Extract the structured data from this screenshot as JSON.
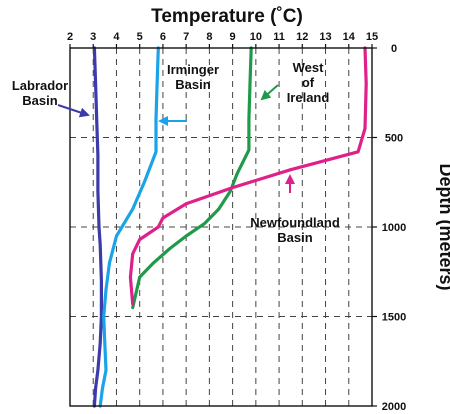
{
  "chart_data": {
    "type": "line",
    "title": "Temperature (˚C)",
    "xlabel": "Temperature (˚C)",
    "ylabel": "Depth (meters)",
    "xlim": [
      2,
      15
    ],
    "ylim": [
      0,
      2000
    ],
    "y_inverted": true,
    "x_axis_position": "top",
    "y_axis_position": "right",
    "grid": "dashed",
    "x_ticks": [
      "2",
      "3",
      "4",
      "5",
      "6",
      "7",
      "8",
      "9",
      "10",
      "11",
      "12",
      "13",
      "14",
      "15"
    ],
    "y_ticks": [
      "0",
      "500",
      "1000",
      "1500",
      "2000"
    ],
    "y_tick_values": [
      0,
      500,
      1000,
      1500,
      2000
    ],
    "series": [
      {
        "name": "Labrador Basin",
        "color": "#3b3baa",
        "x": [
          3.05,
          3.1,
          3.15,
          3.2,
          3.2,
          3.25,
          3.3,
          3.35,
          3.35,
          3.3,
          3.2,
          3.1,
          3.05
        ],
        "y": [
          0,
          200,
          400,
          600,
          800,
          1000,
          1100,
          1300,
          1500,
          1650,
          1800,
          1900,
          2000
        ]
      },
      {
        "name": "Irminger Basin",
        "color": "#1aa3e8",
        "x": [
          5.8,
          5.75,
          5.7,
          5.7,
          5.2,
          4.7,
          4.0,
          3.7,
          3.55,
          3.45,
          3.5,
          3.55,
          3.4,
          3.3
        ],
        "y": [
          0,
          200,
          400,
          580,
          750,
          900,
          1050,
          1200,
          1350,
          1500,
          1650,
          1800,
          1900,
          2000
        ]
      },
      {
        "name": "West of Ireland",
        "color": "#1f9a4a",
        "x": [
          9.8,
          9.75,
          9.7,
          9.7,
          9.2,
          8.9,
          8.4,
          7.8,
          7.0,
          6.3,
          5.6,
          5.0,
          4.7
        ],
        "y": [
          0,
          200,
          400,
          570,
          700,
          800,
          900,
          980,
          1050,
          1120,
          1200,
          1280,
          1450
        ]
      },
      {
        "name": "Newfoundland Basin",
        "color": "#e0208a",
        "x": [
          14.7,
          14.75,
          14.7,
          14.4,
          11.5,
          9.0,
          7.0,
          6.0,
          5.8,
          5.0,
          4.7,
          4.6,
          4.7
        ],
        "y": [
          0,
          200,
          450,
          580,
          680,
          780,
          870,
          950,
          1000,
          1070,
          1150,
          1280,
          1430
        ]
      }
    ],
    "annotations": [
      {
        "lines": [
          "Labrador",
          "Basin"
        ],
        "series_index": 0
      },
      {
        "lines": [
          "Irminger",
          "Basin"
        ],
        "series_index": 1
      },
      {
        "lines": [
          "West",
          "of",
          "Ireland"
        ],
        "series_index": 2
      },
      {
        "lines": [
          "Newfoundland",
          "Basin"
        ],
        "series_index": 3
      }
    ]
  }
}
